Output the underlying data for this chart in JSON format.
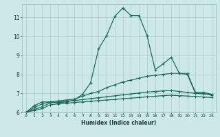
{
  "xlabel": "Humidex (Indice chaleur)",
  "xlim": [
    -0.5,
    23.5
  ],
  "ylim": [
    6.0,
    11.7
  ],
  "yticks": [
    6,
    7,
    8,
    9,
    10,
    11
  ],
  "xticks": [
    0,
    1,
    2,
    3,
    4,
    5,
    6,
    7,
    8,
    9,
    10,
    11,
    12,
    13,
    14,
    15,
    16,
    17,
    18,
    19,
    20,
    21,
    22,
    23
  ],
  "bg_color": "#cce8e8",
  "grid_color": "#aacccc",
  "line_color": "#1a6b5a",
  "line1_x": [
    0,
    1,
    2,
    3,
    4,
    5,
    6,
    7,
    8,
    9,
    10,
    11,
    12,
    13,
    14,
    15,
    16,
    17,
    18,
    19,
    20,
    21,
    22,
    23
  ],
  "line1_y": [
    6.0,
    6.35,
    6.55,
    6.55,
    6.5,
    6.55,
    6.65,
    6.95,
    7.55,
    9.35,
    10.05,
    11.05,
    11.5,
    11.1,
    11.1,
    10.05,
    8.25,
    8.55,
    8.9,
    8.05,
    8.0,
    7.0,
    7.0,
    6.9
  ],
  "line2_x": [
    0,
    1,
    2,
    3,
    4,
    5,
    6,
    7,
    8,
    9,
    10,
    11,
    12,
    13,
    14,
    15,
    16,
    17,
    18,
    19,
    20,
    21,
    22,
    23
  ],
  "line2_y": [
    6.0,
    6.25,
    6.45,
    6.55,
    6.6,
    6.65,
    6.7,
    6.85,
    7.0,
    7.1,
    7.3,
    7.45,
    7.6,
    7.7,
    7.8,
    7.9,
    7.95,
    8.0,
    8.05,
    8.05,
    8.05,
    7.05,
    7.05,
    6.95
  ],
  "line3_x": [
    0,
    1,
    2,
    3,
    4,
    5,
    6,
    7,
    8,
    9,
    10,
    11,
    12,
    13,
    14,
    15,
    16,
    17,
    18,
    19,
    20,
    21,
    22,
    23
  ],
  "line3_y": [
    6.0,
    6.15,
    6.3,
    6.5,
    6.55,
    6.58,
    6.62,
    6.67,
    6.72,
    6.77,
    6.82,
    6.87,
    6.92,
    6.97,
    7.02,
    7.07,
    7.1,
    7.13,
    7.15,
    7.1,
    7.05,
    7.0,
    6.97,
    6.95
  ],
  "line4_x": [
    0,
    1,
    2,
    3,
    4,
    5,
    6,
    7,
    8,
    9,
    10,
    11,
    12,
    13,
    14,
    15,
    16,
    17,
    18,
    19,
    20,
    21,
    22,
    23
  ],
  "line4_y": [
    6.0,
    6.1,
    6.2,
    6.4,
    6.45,
    6.48,
    6.52,
    6.55,
    6.58,
    6.62,
    6.65,
    6.68,
    6.72,
    6.75,
    6.78,
    6.82,
    6.85,
    6.88,
    6.9,
    6.88,
    6.86,
    6.83,
    6.81,
    6.78
  ]
}
